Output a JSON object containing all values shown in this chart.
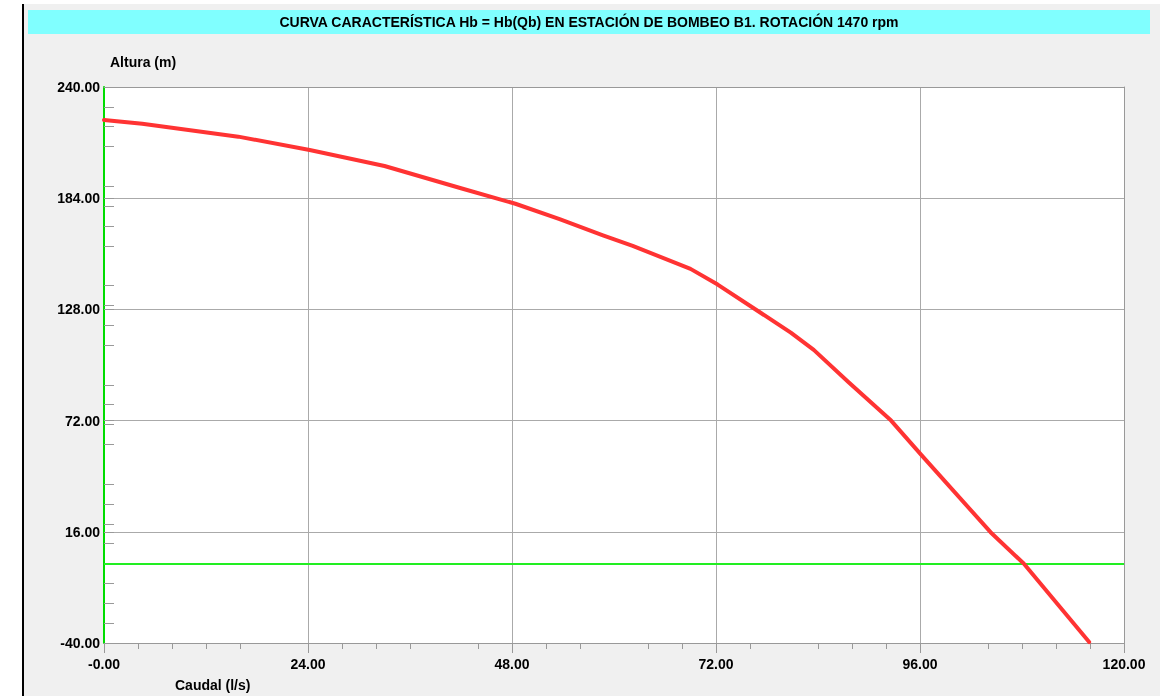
{
  "chart_data": {
    "type": "line",
    "title": "CURVA CARACTERÍSTICA Hb = Hb(Qb) EN ESTACIÓN DE BOMBEO B1. ROTACIÓN  1470 rpm",
    "xlabel": "Caudal (l/s)",
    "ylabel": "Altura (m)",
    "x": [
      0,
      4.5,
      15.8,
      24.2,
      33,
      42.1,
      48.4,
      53.6,
      58.7,
      62.2,
      69,
      72.2,
      80.8,
      83.5,
      87.6,
      92.6,
      96.2,
      104.3,
      108.2,
      115.9
    ],
    "series": [
      {
        "color": "#ff3333",
        "values": [
          223.4,
          221.5,
          215,
          208.3,
          200.2,
          188.9,
          181.2,
          173.5,
          165.3,
          160,
          148.4,
          140.5,
          116.3,
          107.6,
          91.3,
          72,
          54.5,
          15.8,
          0,
          -39.5
        ]
      }
    ],
    "xlim": [
      0,
      120
    ],
    "xticks": [
      {
        "value": 0,
        "label": "-0.00"
      },
      {
        "value": 24,
        "label": "24.00"
      },
      {
        "value": 48,
        "label": "48.00"
      },
      {
        "value": 72,
        "label": "72.00"
      },
      {
        "value": 96,
        "label": "96.00"
      },
      {
        "value": 120,
        "label": "120.00"
      }
    ],
    "ylim": [
      -40,
      240
    ],
    "yticks": [
      {
        "value": -40,
        "label": "-40.00"
      },
      {
        "value": 16,
        "label": "16.00"
      },
      {
        "value": 72,
        "label": "72.00"
      },
      {
        "value": 128,
        "label": "128.00"
      },
      {
        "value": 184,
        "label": "184.00"
      },
      {
        "value": 240,
        "label": "240.00"
      }
    ],
    "ref_lines": [
      {
        "axis": "y",
        "value": 0,
        "color": "#22ee22"
      }
    ],
    "grid": true,
    "marker": "none",
    "line_style": "solid"
  }
}
